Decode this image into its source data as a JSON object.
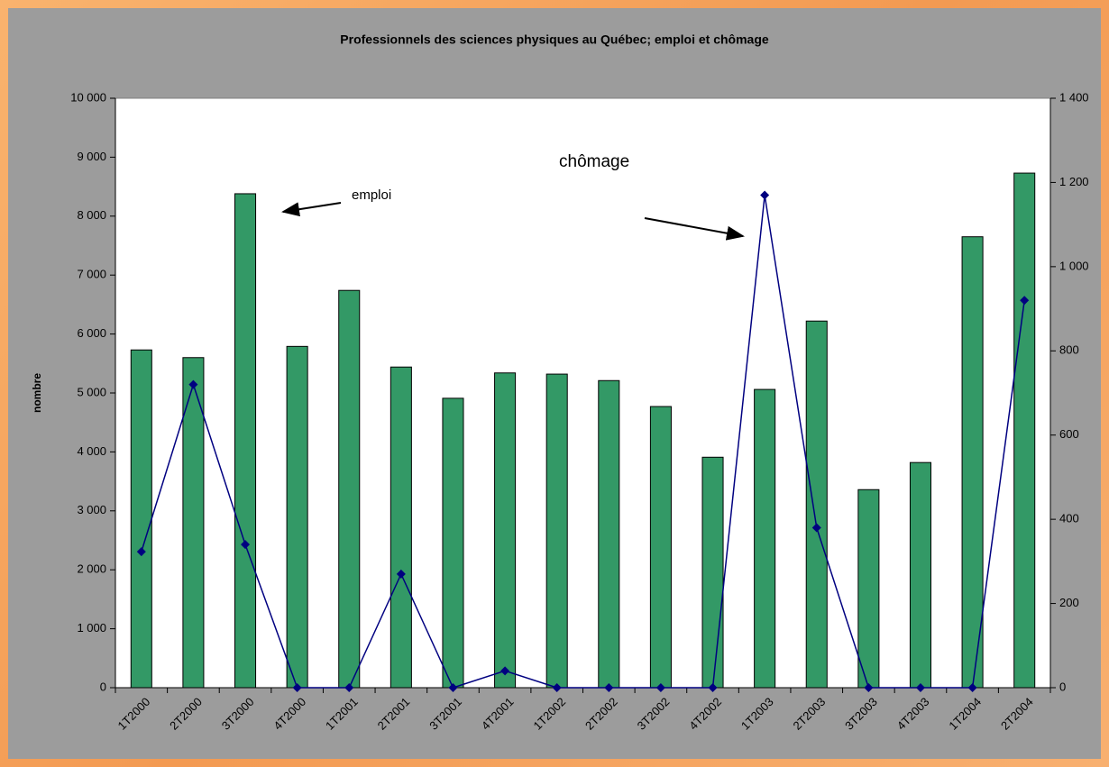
{
  "chart_data": {
    "type": "bar-line",
    "title": "Professionnels des sciences physiques au Québec; emploi et chômage",
    "ylabel": "nombre",
    "annotations": [
      "emploi",
      "chômage"
    ],
    "categories": [
      "1T2000",
      "2T2000",
      "3T2000",
      "4T2000",
      "1T2001",
      "2T2001",
      "3T2001",
      "4T2001",
      "1T2002",
      "2T2002",
      "3T2002",
      "4T2002",
      "1T2003",
      "2T2003",
      "3T2003",
      "4T2003",
      "1T2004",
      "2T2004"
    ],
    "series": [
      {
        "name": "emploi",
        "type": "bar",
        "color": "#339966",
        "values": [
          5730,
          5600,
          8380,
          5790,
          6740,
          5440,
          4910,
          5340,
          5320,
          5210,
          4770,
          3910,
          5060,
          6220,
          3360,
          3820,
          7650,
          8730
        ]
      },
      {
        "name": "chômage",
        "type": "line",
        "axis": "y2",
        "color": "#000080",
        "values": [
          323,
          720,
          340,
          0,
          0,
          270,
          0,
          40,
          0,
          0,
          0,
          0,
          1170,
          380,
          0,
          0,
          0,
          920
        ]
      }
    ],
    "ylim": [
      0,
      10000
    ],
    "yticks": [
      0,
      {
        "value": 1000,
        "label": "1 000"
      },
      {
        "value": 2000,
        "label": "2 000"
      },
      {
        "value": 3000,
        "label": "3 000"
      },
      {
        "value": 4000,
        "label": "4 000"
      },
      {
        "value": 5000,
        "label": "5 000"
      },
      {
        "value": 6000,
        "label": "6 000"
      },
      {
        "value": 7000,
        "label": "7 000"
      },
      {
        "value": 8000,
        "label": "8 000"
      },
      {
        "value": 9000,
        "label": "9 000"
      },
      {
        "value": 10000,
        "label": "10 000"
      }
    ],
    "y2lim": [
      0,
      1400
    ],
    "y2ticks": [
      0,
      200,
      400,
      600,
      800,
      {
        "value": 1000,
        "label": "1 000"
      },
      {
        "value": 1200,
        "label": "1 200"
      },
      {
        "value": 1400,
        "label": "1 400"
      }
    ],
    "grid": false
  }
}
